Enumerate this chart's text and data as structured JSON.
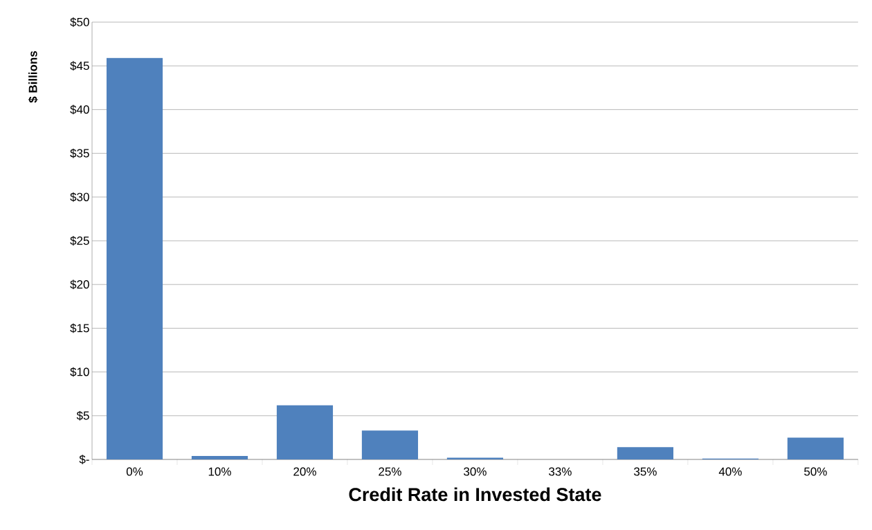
{
  "chart_data": {
    "type": "bar",
    "xlabel": "Credit Rate in Invested State",
    "ylabel": "$ Billions",
    "categories": [
      "0%",
      "10%",
      "20%",
      "25%",
      "30%",
      "33%",
      "35%",
      "40%",
      "50%"
    ],
    "values": [
      45.9,
      0.4,
      6.2,
      3.3,
      0.2,
      0,
      1.4,
      0.1,
      2.5
    ],
    "color": "#4f81bd",
    "ylim": [
      0,
      50
    ],
    "yticks": [
      {
        "value": 0,
        "label": "$-"
      },
      {
        "value": 5,
        "label": "$5"
      },
      {
        "value": 10,
        "label": "$10"
      },
      {
        "value": 15,
        "label": "$15"
      },
      {
        "value": 20,
        "label": "$20"
      },
      {
        "value": 25,
        "label": "$25"
      },
      {
        "value": 30,
        "label": "$30"
      },
      {
        "value": 35,
        "label": "$35"
      },
      {
        "value": 40,
        "label": "$40"
      },
      {
        "value": 45,
        "label": "$45"
      },
      {
        "value": 50,
        "label": "$50"
      }
    ],
    "grid": "y"
  }
}
